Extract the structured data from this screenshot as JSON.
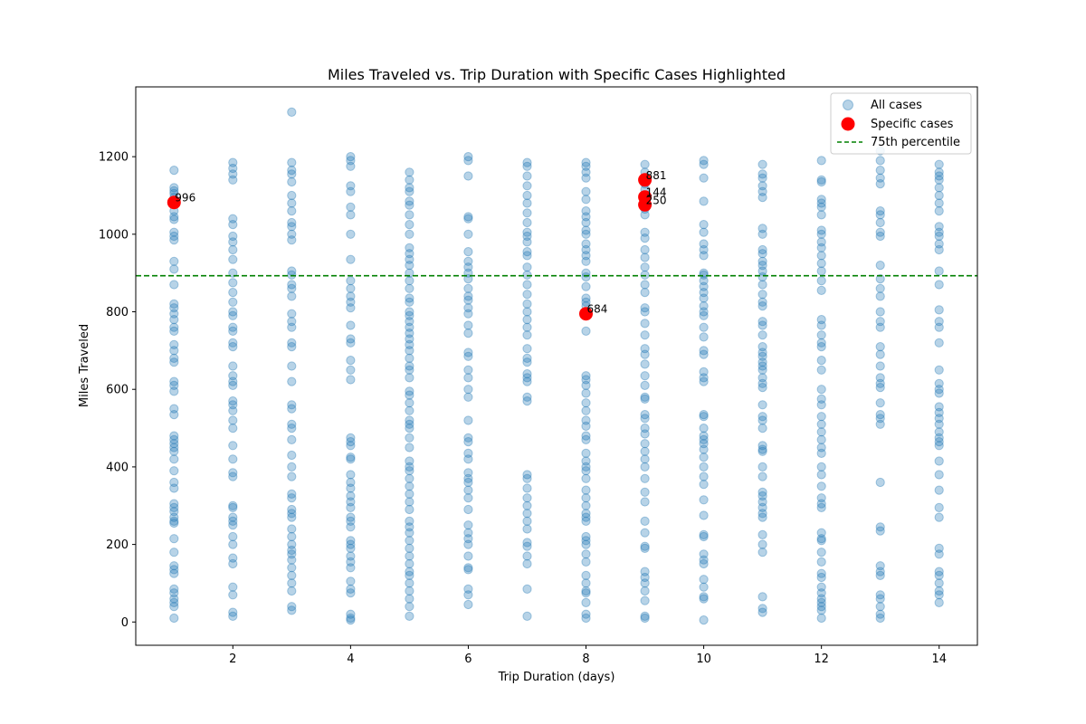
{
  "chart_data": {
    "type": "scatter",
    "title": "Miles Traveled vs. Trip Duration with Specific Cases Highlighted",
    "xlabel": "Trip Duration (days)",
    "ylabel": "Miles Traveled",
    "xlim": [
      0.35,
      14.65
    ],
    "ylim": [
      -60,
      1380
    ],
    "xticks": [
      2,
      4,
      6,
      8,
      10,
      12,
      14
    ],
    "yticks": [
      0,
      200,
      400,
      600,
      800,
      1000,
      1200
    ],
    "grid": false,
    "legend_position": "top-right",
    "colors": {
      "all": "#1f77b4",
      "specific": "#ff0000",
      "percentile": "#008000"
    },
    "reference_line": {
      "name": "75th percentile",
      "y": 893,
      "style": "dashed"
    },
    "series": [
      {
        "name": "All cases",
        "points_by_x": {
          "1": [
            1165,
            1120,
            1112,
            1105,
            1095,
            1080,
            1060,
            1045,
            1038,
            1005,
            995,
            985,
            930,
            910,
            870,
            820,
            810,
            795,
            780,
            760,
            750,
            715,
            700,
            680,
            670,
            620,
            610,
            595,
            550,
            535,
            480,
            470,
            460,
            450,
            440,
            420,
            390,
            360,
            345,
            305,
            295,
            285,
            270,
            260,
            255,
            215,
            180,
            145,
            135,
            125,
            85,
            75,
            60,
            50,
            40,
            10
          ],
          "2": [
            1185,
            1170,
            1155,
            1140,
            1040,
            1025,
            995,
            980,
            960,
            935,
            900,
            875,
            850,
            825,
            800,
            790,
            760,
            750,
            720,
            710,
            660,
            635,
            620,
            610,
            570,
            560,
            545,
            520,
            500,
            455,
            420,
            385,
            375,
            300,
            295,
            270,
            260,
            250,
            220,
            200,
            165,
            150,
            90,
            70,
            25,
            15
          ],
          "3": [
            1315,
            1185,
            1165,
            1155,
            1135,
            1100,
            1080,
            1060,
            1030,
            1020,
            1000,
            985,
            905,
            895,
            870,
            860,
            840,
            795,
            775,
            760,
            720,
            710,
            660,
            620,
            560,
            550,
            510,
            500,
            470,
            430,
            400,
            375,
            330,
            320,
            290,
            280,
            270,
            240,
            220,
            200,
            185,
            175,
            160,
            140,
            120,
            100,
            80,
            40,
            30
          ],
          "4": [
            1200,
            1190,
            1175,
            1125,
            1110,
            1070,
            1050,
            1000,
            935,
            880,
            860,
            840,
            825,
            810,
            765,
            730,
            720,
            675,
            650,
            625,
            475,
            465,
            455,
            425,
            420,
            380,
            360,
            345,
            325,
            310,
            295,
            270,
            260,
            245,
            210,
            200,
            190,
            170,
            155,
            140,
            105,
            85,
            75,
            20,
            10,
            5
          ],
          "5": [
            1160,
            1140,
            1120,
            1110,
            1085,
            1075,
            1050,
            1025,
            1000,
            965,
            950,
            935,
            920,
            900,
            880,
            860,
            835,
            825,
            800,
            790,
            775,
            760,
            745,
            730,
            715,
            700,
            680,
            660,
            650,
            630,
            595,
            585,
            565,
            545,
            520,
            510,
            500,
            475,
            450,
            415,
            400,
            390,
            370,
            350,
            330,
            310,
            290,
            260,
            245,
            230,
            210,
            190,
            170,
            150,
            130,
            120,
            100,
            80,
            60,
            40,
            15
          ],
          "6": [
            1200,
            1190,
            1150,
            1045,
            1040,
            1000,
            955,
            930,
            915,
            900,
            885,
            860,
            840,
            830,
            810,
            795,
            765,
            745,
            695,
            685,
            650,
            630,
            600,
            580,
            520,
            475,
            465,
            435,
            420,
            385,
            370,
            360,
            340,
            320,
            290,
            250,
            230,
            215,
            200,
            170,
            140,
            135,
            85,
            70,
            45
          ],
          "7": [
            1185,
            1175,
            1150,
            1125,
            1100,
            1080,
            1055,
            1030,
            1005,
            995,
            980,
            955,
            945,
            915,
            895,
            870,
            845,
            820,
            800,
            780,
            760,
            740,
            705,
            680,
            670,
            640,
            630,
            620,
            580,
            570,
            380,
            370,
            345,
            320,
            300,
            280,
            260,
            240,
            205,
            195,
            170,
            150,
            85,
            15
          ],
          "8": [
            1185,
            1175,
            1160,
            1145,
            1110,
            1090,
            1060,
            1045,
            1030,
            1010,
            1000,
            975,
            960,
            945,
            930,
            900,
            890,
            865,
            835,
            825,
            815,
            750,
            635,
            625,
            610,
            590,
            565,
            545,
            520,
            505,
            480,
            470,
            435,
            415,
            400,
            390,
            370,
            340,
            320,
            300,
            280,
            270,
            260,
            220,
            210,
            200,
            175,
            155,
            120,
            100,
            80,
            75,
            50,
            20,
            10
          ],
          "9": [
            1180,
            1160,
            1130,
            1115,
            1080,
            1065,
            1050,
            1005,
            990,
            960,
            940,
            915,
            895,
            870,
            850,
            810,
            800,
            770,
            740,
            705,
            690,
            665,
            635,
            610,
            580,
            575,
            535,
            525,
            500,
            485,
            460,
            440,
            420,
            400,
            370,
            335,
            310,
            260,
            230,
            195,
            190,
            130,
            115,
            100,
            80,
            55,
            15,
            10
          ],
          "10": [
            1190,
            1180,
            1145,
            1085,
            1025,
            1005,
            975,
            960,
            945,
            900,
            895,
            880,
            865,
            850,
            835,
            815,
            800,
            790,
            760,
            735,
            700,
            690,
            645,
            630,
            620,
            535,
            530,
            500,
            480,
            470,
            460,
            445,
            425,
            400,
            375,
            355,
            315,
            275,
            225,
            220,
            175,
            160,
            150,
            110,
            90,
            65,
            60,
            5
          ],
          "11": [
            1180,
            1155,
            1145,
            1125,
            1110,
            1095,
            1015,
            1000,
            960,
            950,
            930,
            920,
            905,
            890,
            870,
            845,
            825,
            815,
            775,
            765,
            740,
            710,
            695,
            685,
            670,
            660,
            650,
            630,
            615,
            605,
            560,
            530,
            520,
            500,
            455,
            445,
            440,
            400,
            375,
            335,
            325,
            310,
            295,
            280,
            270,
            225,
            200,
            180,
            65,
            35,
            25
          ],
          "12": [
            1190,
            1140,
            1135,
            1090,
            1080,
            1070,
            1050,
            1010,
            1000,
            980,
            965,
            945,
            925,
            905,
            880,
            855,
            780,
            765,
            740,
            720,
            710,
            675,
            650,
            600,
            575,
            560,
            530,
            510,
            490,
            470,
            450,
            435,
            400,
            380,
            350,
            320,
            305,
            295,
            230,
            215,
            210,
            180,
            155,
            125,
            115,
            90,
            75,
            60,
            50,
            40,
            30,
            10
          ],
          "13": [
            1215,
            1190,
            1165,
            1145,
            1130,
            1060,
            1050,
            1030,
            1005,
            995,
            920,
            885,
            860,
            840,
            800,
            775,
            760,
            710,
            690,
            660,
            630,
            615,
            605,
            565,
            535,
            525,
            510,
            360,
            245,
            235,
            145,
            130,
            120,
            70,
            60,
            40,
            20,
            10
          ],
          "14": [
            1180,
            1160,
            1150,
            1140,
            1120,
            1100,
            1080,
            1060,
            1020,
            1005,
            995,
            975,
            960,
            905,
            870,
            805,
            775,
            760,
            720,
            650,
            615,
            600,
            590,
            555,
            540,
            525,
            510,
            490,
            475,
            465,
            455,
            415,
            380,
            340,
            295,
            270,
            190,
            175,
            130,
            120,
            100,
            80,
            70,
            50
          ]
        }
      },
      {
        "name": "Specific cases",
        "points": [
          {
            "x": 1,
            "y": 1082,
            "label": "996"
          },
          {
            "x": 9,
            "y": 1140,
            "label": "881"
          },
          {
            "x": 9,
            "y": 1096,
            "label": "144"
          },
          {
            "x": 9,
            "y": 1076,
            "label": "250"
          },
          {
            "x": 8,
            "y": 795,
            "label": "684"
          }
        ]
      }
    ]
  }
}
